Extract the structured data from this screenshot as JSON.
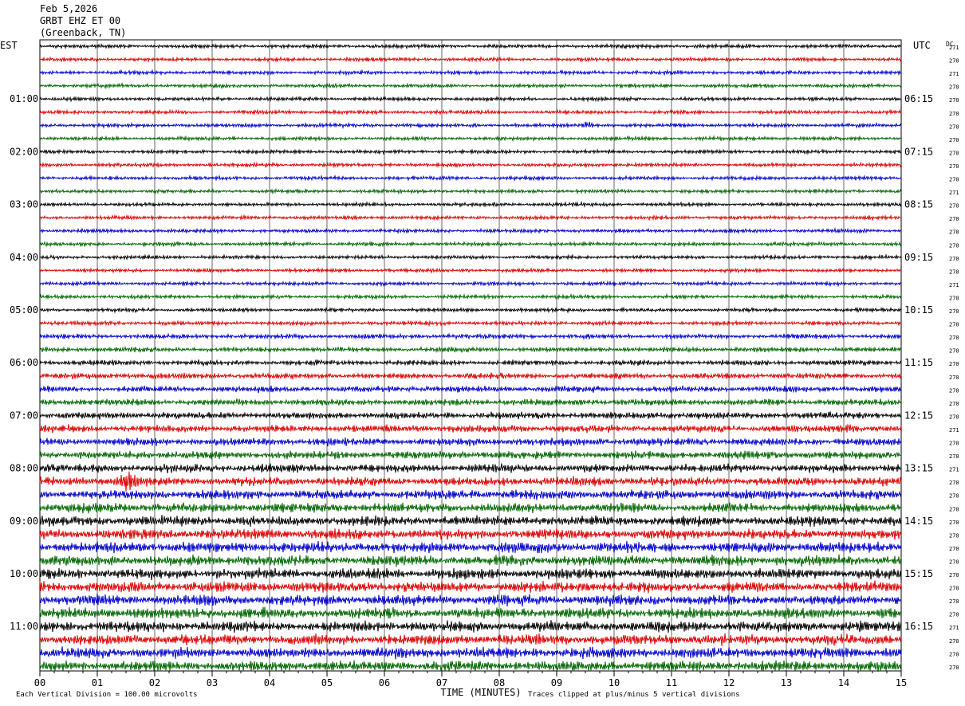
{
  "header": {
    "date": "Feb 5,2026",
    "station": "GRBT EHZ ET 00",
    "location": "(Greenback, TN)"
  },
  "left_zone": "EST",
  "right_zone": "UTC",
  "dc_label": "DC",
  "footer": {
    "scale_note": "Each Vertical Division =  100.00 microvolts",
    "clip_note": "Traces clipped at plus/minus 5 vertical divisions"
  },
  "chart_data": {
    "type": "line",
    "title": "",
    "xlabel": "TIME (MINUTES)",
    "ylabel": "",
    "xlim": [
      0,
      15
    ],
    "x_ticks": [
      "00",
      "01",
      "02",
      "03",
      "04",
      "05",
      "06",
      "07",
      "08",
      "09",
      "10",
      "11",
      "12",
      "13",
      "14",
      "15"
    ],
    "left_time_labels": [
      "01:00",
      "02:00",
      "03:00",
      "04:00",
      "05:00",
      "06:00",
      "07:00",
      "08:00",
      "09:00",
      "10:00",
      "11:00"
    ],
    "right_time_labels": [
      "06:15",
      "07:15",
      "08:15",
      "09:15",
      "10:15",
      "11:15",
      "12:15",
      "13:15",
      "14:15",
      "15:15",
      "16:15"
    ],
    "trace_colors": [
      "#000000",
      "#dd0000",
      "#0000cc",
      "#006600"
    ],
    "grid": "vertical lines each minute",
    "trace_count": 48,
    "dc_offsets": [
      "271",
      "270",
      "271",
      "270",
      "270",
      "270",
      "270",
      "270",
      "270",
      "270",
      "270",
      "271",
      "270",
      "270",
      "270",
      "270",
      "270",
      "270",
      "271",
      "270",
      "270",
      "270",
      "270",
      "270",
      "270",
      "270",
      "270",
      "270",
      "270",
      "271",
      "270",
      "270",
      "271",
      "270",
      "270",
      "270",
      "270",
      "270",
      "270",
      "270",
      "270",
      "270",
      "270",
      "270",
      "271",
      "270",
      "270",
      "270"
    ],
    "events": [
      {
        "trace": 6,
        "minute": 9.55,
        "amplitude": 2.2
      },
      {
        "trace": 29,
        "minute": 14.1,
        "amplitude": 1.5
      },
      {
        "trace": 33,
        "minute": 1.55,
        "amplitude": 1.8
      }
    ]
  }
}
